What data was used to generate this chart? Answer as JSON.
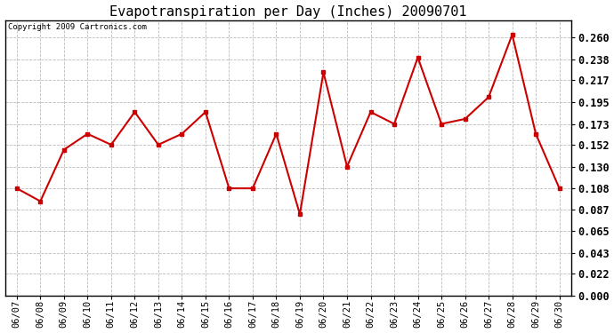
{
  "title": "Evapotranspiration per Day (Inches) 20090701",
  "copyright_text": "Copyright 2009 Cartronics.com",
  "categories": [
    "06/07",
    "06/08",
    "06/09",
    "06/10",
    "06/11",
    "06/12",
    "06/13",
    "06/14",
    "06/15",
    "06/16",
    "06/17",
    "06/18",
    "06/19",
    "06/20",
    "06/21",
    "06/22",
    "06/23",
    "06/24",
    "06/25",
    "06/26",
    "06/27",
    "06/28",
    "06/29",
    "06/30"
  ],
  "values": [
    0.108,
    0.095,
    0.147,
    0.163,
    0.152,
    0.185,
    0.152,
    0.163,
    0.185,
    0.108,
    0.108,
    0.163,
    0.082,
    0.225,
    0.13,
    0.185,
    0.173,
    0.24,
    0.173,
    0.178,
    0.2,
    0.263,
    0.163,
    0.108
  ],
  "line_color": "#cc0000",
  "marker_color": "#cc0000",
  "background_color": "#ffffff",
  "plot_bg_color": "#ffffff",
  "grid_color": "#bbbbbb",
  "ylim": [
    0.0,
    0.2773
  ],
  "yticks": [
    0.0,
    0.022,
    0.043,
    0.065,
    0.087,
    0.108,
    0.13,
    0.152,
    0.173,
    0.195,
    0.217,
    0.238,
    0.26
  ],
  "title_fontsize": 11,
  "copyright_fontsize": 6.5,
  "tick_fontsize": 7.5,
  "ytick_fontsize": 8.5
}
